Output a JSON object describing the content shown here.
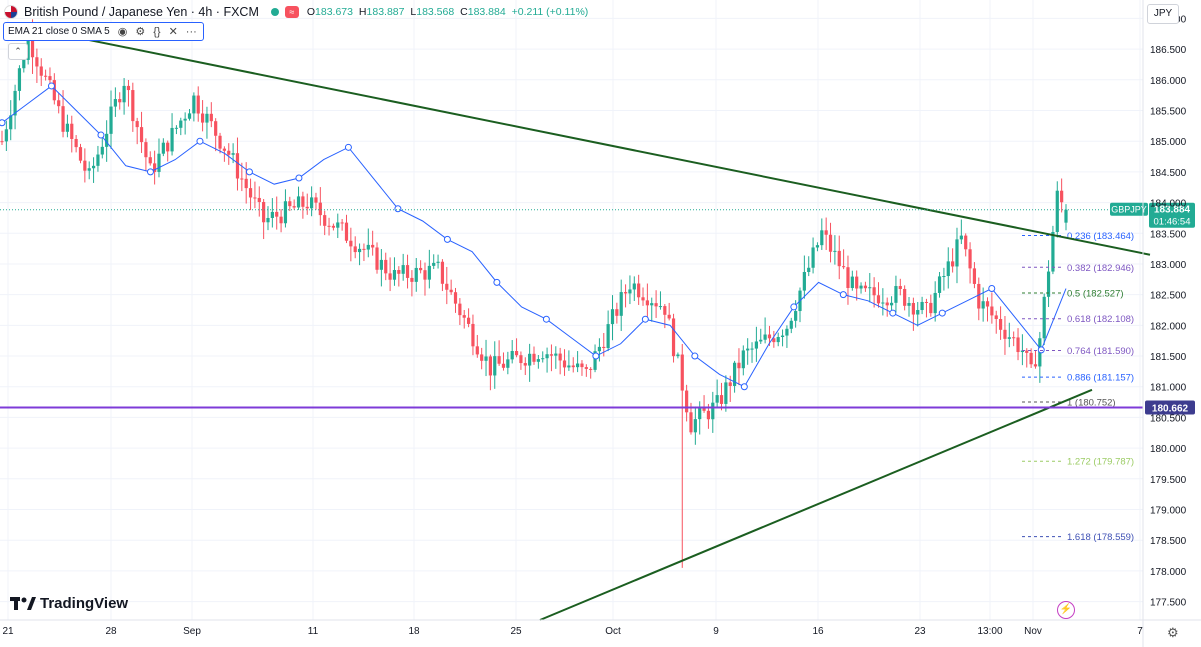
{
  "header": {
    "title": "British Pound / Japanese Yen · 4h · FXCM",
    "ohlc": [
      {
        "k": "O",
        "v": "183.673"
      },
      {
        "k": "H",
        "v": "183.887"
      },
      {
        "k": "L",
        "v": "183.568"
      },
      {
        "k": "C",
        "v": "183.884"
      }
    ],
    "change": "+0.211 (+0.11%)"
  },
  "indicator_legend": "EMA 21 close 0 SMA 5",
  "currency_button": "JPY",
  "logo_text": "TradingView",
  "colors": {
    "up": "#22ab94",
    "down": "#f7525f",
    "ema": "#2962ff",
    "trendline": "#1b5e20",
    "support": "#7e3bd8"
  },
  "chart_data": {
    "type": "candlestick",
    "symbol": "GBPJPY",
    "interval": "4h",
    "ylim": [
      177.2,
      187.3
    ],
    "y_ticks": [
      "177.500",
      "178.000",
      "178.500",
      "179.000",
      "179.500",
      "180.000",
      "180.500",
      "181.000",
      "181.500",
      "182.000",
      "182.500",
      "183.000",
      "183.500",
      "184.000",
      "184.500",
      "185.000",
      "185.500",
      "186.000",
      "186.500",
      "187.000"
    ],
    "x_ticks": [
      "21",
      "28",
      "Sep",
      "11",
      "18",
      "25",
      "Oct",
      "9",
      "16",
      "23",
      "13:00",
      "Nov",
      "7"
    ],
    "summary_path": [
      [
        0,
        185.0
      ],
      [
        6,
        186.7
      ],
      [
        14,
        185.3
      ],
      [
        20,
        184.4
      ],
      [
        28,
        186.0
      ],
      [
        34,
        184.5
      ],
      [
        44,
        185.7
      ],
      [
        52,
        184.8
      ],
      [
        60,
        183.7
      ],
      [
        70,
        184.0
      ],
      [
        82,
        183.3
      ],
      [
        90,
        182.8
      ],
      [
        100,
        182.9
      ],
      [
        112,
        181.3
      ],
      [
        124,
        181.6
      ],
      [
        134,
        181.2
      ],
      [
        144,
        182.7
      ],
      [
        152,
        182.3
      ],
      [
        158,
        180.4
      ],
      [
        164,
        180.7
      ],
      [
        170,
        181.5
      ],
      [
        180,
        182.0
      ],
      [
        188,
        183.5
      ],
      [
        196,
        182.5
      ],
      [
        206,
        182.5
      ],
      [
        212,
        182.2
      ],
      [
        220,
        183.4
      ],
      [
        224,
        182.4
      ],
      [
        234,
        181.6
      ],
      [
        236,
        181.2
      ],
      [
        238,
        181.8
      ],
      [
        242,
        184.1
      ],
      [
        244,
        183.88
      ]
    ],
    "ema_label": "EMA 21",
    "ema": [
      185.3,
      185.6,
      185.9,
      185.5,
      185.1,
      184.6,
      184.5,
      184.7,
      185.0,
      184.8,
      184.5,
      184.3,
      184.4,
      184.7,
      184.9,
      184.4,
      183.9,
      183.7,
      183.4,
      183.2,
      182.7,
      182.3,
      182.1,
      181.8,
      181.5,
      181.7,
      182.1,
      182.0,
      181.5,
      181.2,
      181.0,
      181.7,
      182.3,
      182.7,
      182.5,
      182.4,
      182.2,
      182.0,
      182.2,
      182.4,
      182.6,
      182.1,
      181.6,
      182.6
    ],
    "last_price": {
      "symbol_label": "GBPJPY",
      "price": "183.884",
      "countdown": "01:46:54"
    },
    "horizontal_line": {
      "price": 180.662,
      "label": "180.662"
    },
    "trendlines": [
      {
        "from": {
          "x": "Aug 21",
          "y": 186.85
        },
        "to": {
          "x": "Nov 4",
          "y": 183.15
        }
      },
      {
        "from": {
          "x": "Sep 26",
          "y": 177.2
        },
        "to": {
          "x": "Nov 2",
          "y": 180.95
        }
      }
    ],
    "fibonacci": [
      {
        "level": "0.236",
        "price": "183.464",
        "color": "#2962ff"
      },
      {
        "level": "0.382",
        "price": "182.946",
        "color": "#7e57c2"
      },
      {
        "level": "0.5",
        "price": "182.527",
        "color": "#2e7d32"
      },
      {
        "level": "0.618",
        "price": "182.108",
        "color": "#7e57c2"
      },
      {
        "level": "0.764",
        "price": "181.590",
        "color": "#7e57c2"
      },
      {
        "level": "0.886",
        "price": "181.157",
        "color": "#2962ff"
      },
      {
        "level": "1",
        "price": "180.752",
        "color": "#555555"
      },
      {
        "level": "1.272",
        "price": "179.787",
        "color": "#9ccc65"
      },
      {
        "level": "1.618",
        "price": "178.559",
        "color": "#3f51b5"
      }
    ]
  }
}
